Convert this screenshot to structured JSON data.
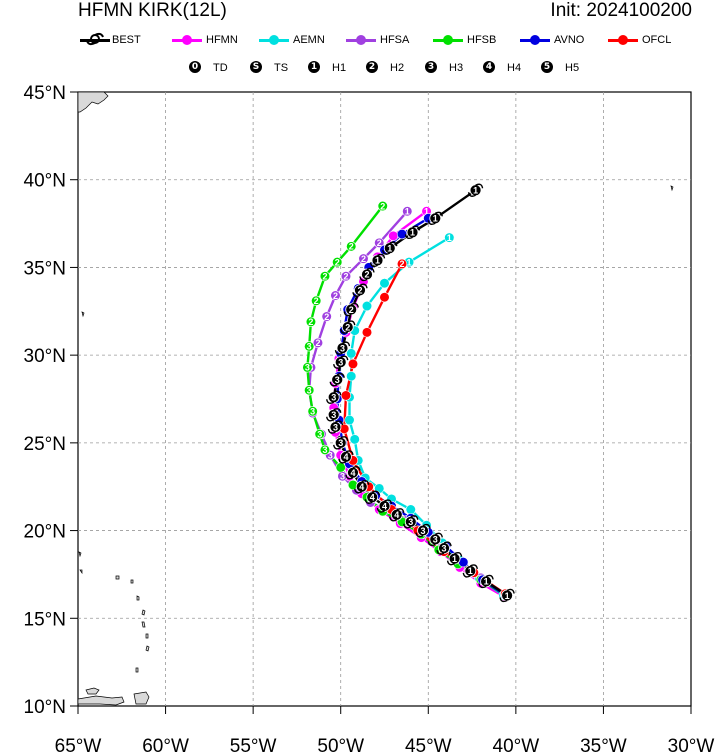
{
  "header": {
    "title": "HFMN KIRK(12L)",
    "init": "Init: 2024100200"
  },
  "legend": {
    "models": [
      {
        "label": "BEST",
        "color": "#000000",
        "icon": "hurricane-symbol-icon"
      },
      {
        "label": "HFMN",
        "color": "#ff00ff"
      },
      {
        "label": "AEMN",
        "color": "#00e0e0"
      },
      {
        "label": "HFSA",
        "color": "#a040e0"
      },
      {
        "label": "HFSB",
        "color": "#00e000"
      },
      {
        "label": "AVNO",
        "color": "#0000e0"
      },
      {
        "label": "OFCL",
        "color": "#ff0000"
      }
    ],
    "categories": [
      {
        "symbol": "0",
        "label": "TD"
      },
      {
        "symbol": "S",
        "label": "TS"
      },
      {
        "symbol": "1",
        "label": "H1"
      },
      {
        "symbol": "2",
        "label": "H2"
      },
      {
        "symbol": "3",
        "label": "H3"
      },
      {
        "symbol": "4",
        "label": "H4"
      },
      {
        "symbol": "5",
        "label": "H5"
      }
    ]
  },
  "map": {
    "lon_range": [
      -65,
      -30
    ],
    "lat_range": [
      10,
      45
    ],
    "lat_ticks": [
      "45°N",
      "40°N",
      "35°N",
      "30°N",
      "25°N",
      "20°N",
      "15°N",
      "10°N"
    ],
    "lon_ticks": [
      "65°W",
      "60°W",
      "55°W",
      "50°W",
      "45°W",
      "40°W",
      "35°W",
      "30°W"
    ],
    "grid": "dashed"
  },
  "chart_data": {
    "type": "scatter",
    "x_unit": "longitude (deg, negative = W)",
    "y_unit": "latitude (deg N)",
    "series": [
      {
        "name": "BEST",
        "color": "#000000",
        "points": [
          [
            -40.5,
            16.3,
            "1"
          ],
          [
            -41.7,
            17.1,
            "1"
          ],
          [
            -42.6,
            17.7,
            "1"
          ],
          [
            -43.5,
            18.4,
            "1"
          ],
          [
            -44.1,
            19.0,
            "3"
          ],
          [
            -44.6,
            19.5,
            "3"
          ],
          [
            -45.3,
            20.0,
            "3"
          ],
          [
            -46.0,
            20.5,
            "3"
          ],
          [
            -46.8,
            20.9,
            "4"
          ],
          [
            -47.5,
            21.4,
            "4"
          ],
          [
            -48.2,
            21.9,
            "4"
          ],
          [
            -48.8,
            22.5,
            "4"
          ],
          [
            -49.3,
            23.3,
            "4"
          ],
          [
            -49.7,
            24.2,
            "4"
          ],
          [
            -50.0,
            25.0,
            "3"
          ],
          [
            -50.3,
            25.9,
            "3"
          ],
          [
            -50.4,
            26.6,
            "3"
          ],
          [
            -50.4,
            27.6,
            "3"
          ],
          [
            -50.2,
            28.6,
            "3"
          ],
          [
            -50.0,
            29.6,
            "3"
          ],
          [
            -49.9,
            30.4,
            "3"
          ],
          [
            -49.6,
            31.6,
            "2"
          ],
          [
            -49.4,
            32.6,
            "2"
          ],
          [
            -48.9,
            33.7,
            "2"
          ],
          [
            -48.5,
            34.6,
            "2"
          ],
          [
            -47.9,
            35.4,
            "1"
          ],
          [
            -47.2,
            36.1,
            "1"
          ],
          [
            -45.9,
            37.0,
            "1"
          ],
          [
            -44.6,
            37.8,
            "1"
          ],
          [
            -42.3,
            39.4,
            "1"
          ]
        ]
      },
      {
        "name": "HFMN",
        "color": "#ff00ff",
        "points": [
          [
            -40.6,
            16.2,
            ""
          ],
          [
            -42.0,
            17.0,
            ""
          ],
          [
            -43.2,
            17.9,
            ""
          ],
          [
            -44.3,
            18.8,
            ""
          ],
          [
            -45.4,
            19.6,
            ""
          ],
          [
            -46.6,
            20.4,
            ""
          ],
          [
            -47.8,
            21.2,
            ""
          ],
          [
            -48.8,
            22.1,
            ""
          ],
          [
            -49.5,
            23.1,
            ""
          ],
          [
            -50.0,
            24.3,
            ""
          ],
          [
            -50.3,
            25.6,
            ""
          ],
          [
            -50.4,
            27.0,
            ""
          ],
          [
            -50.3,
            28.4,
            ""
          ],
          [
            -50.1,
            29.8,
            ""
          ],
          [
            -49.7,
            31.3,
            ""
          ],
          [
            -49.3,
            32.7,
            ""
          ],
          [
            -48.7,
            34.2,
            ""
          ],
          [
            -47.9,
            35.6,
            ""
          ],
          [
            -47.0,
            36.8,
            ""
          ],
          [
            -45.1,
            38.2,
            "1"
          ]
        ]
      },
      {
        "name": "AEMN",
        "color": "#00e0e0",
        "points": [
          [
            -40.7,
            16.3,
            ""
          ],
          [
            -42.1,
            17.3,
            ""
          ],
          [
            -43.2,
            18.3,
            ""
          ],
          [
            -44.2,
            19.3,
            ""
          ],
          [
            -45.1,
            20.3,
            ""
          ],
          [
            -46.0,
            21.2,
            ""
          ],
          [
            -47.1,
            21.8,
            ""
          ],
          [
            -47.8,
            22.4,
            ""
          ],
          [
            -48.6,
            23.0,
            ""
          ],
          [
            -49.0,
            24.0,
            ""
          ],
          [
            -49.2,
            25.2,
            ""
          ],
          [
            -49.5,
            26.3,
            ""
          ],
          [
            -49.5,
            27.6,
            ""
          ],
          [
            -49.4,
            28.8,
            ""
          ],
          [
            -49.4,
            30.1,
            ""
          ],
          [
            -49.2,
            31.4,
            ""
          ],
          [
            -48.5,
            32.8,
            ""
          ],
          [
            -47.5,
            34.1,
            ""
          ],
          [
            -46.1,
            35.3,
            "1"
          ],
          [
            -43.8,
            36.7,
            "1"
          ]
        ]
      },
      {
        "name": "HFSA",
        "color": "#a040e0",
        "points": [
          [
            -40.6,
            16.3,
            ""
          ],
          [
            -42.0,
            17.3,
            ""
          ],
          [
            -43.3,
            18.2,
            ""
          ],
          [
            -44.3,
            19.0,
            ""
          ],
          [
            -45.3,
            19.8,
            ""
          ],
          [
            -46.2,
            20.6,
            ""
          ],
          [
            -47.4,
            21.2,
            ""
          ],
          [
            -48.3,
            21.6,
            ""
          ],
          [
            -49.1,
            22.3,
            ""
          ],
          [
            -49.9,
            23.1,
            "3"
          ],
          [
            -50.6,
            24.3,
            "3"
          ],
          [
            -51.1,
            25.5,
            "3"
          ],
          [
            -51.6,
            26.7,
            "3"
          ],
          [
            -51.8,
            28.0,
            "3"
          ],
          [
            -51.7,
            29.3,
            "3"
          ],
          [
            -51.3,
            30.7,
            "2"
          ],
          [
            -50.8,
            32.2,
            "2"
          ],
          [
            -50.3,
            33.4,
            "2"
          ],
          [
            -49.7,
            34.5,
            "2"
          ],
          [
            -48.7,
            35.5,
            "2"
          ],
          [
            -47.8,
            36.4,
            "2"
          ],
          [
            -46.2,
            38.2,
            "1"
          ]
        ]
      },
      {
        "name": "HFSB",
        "color": "#00e000",
        "points": [
          [
            -40.6,
            16.3,
            ""
          ],
          [
            -42.0,
            17.2,
            ""
          ],
          [
            -43.3,
            18.1,
            ""
          ],
          [
            -44.4,
            18.9,
            ""
          ],
          [
            -45.4,
            19.8,
            ""
          ],
          [
            -46.5,
            20.5,
            ""
          ],
          [
            -47.6,
            21.1,
            ""
          ],
          [
            -48.5,
            21.9,
            ""
          ],
          [
            -49.3,
            22.6,
            ""
          ],
          [
            -50.0,
            23.6,
            ""
          ],
          [
            -50.9,
            24.6,
            "3"
          ],
          [
            -51.2,
            25.5,
            "3"
          ],
          [
            -51.6,
            26.8,
            "3"
          ],
          [
            -51.8,
            28.0,
            "3"
          ],
          [
            -51.9,
            29.3,
            "3"
          ],
          [
            -51.8,
            30.5,
            "3"
          ],
          [
            -51.7,
            31.9,
            "2"
          ],
          [
            -51.4,
            33.1,
            "2"
          ],
          [
            -50.9,
            34.5,
            "2"
          ],
          [
            -50.2,
            35.3,
            "2"
          ],
          [
            -49.4,
            36.2,
            "2"
          ],
          [
            -47.6,
            38.5,
            "2"
          ]
        ]
      },
      {
        "name": "AVNO",
        "color": "#0000e0",
        "points": [
          [
            -40.6,
            16.3,
            ""
          ],
          [
            -41.9,
            17.2,
            ""
          ],
          [
            -43.0,
            18.2,
            ""
          ],
          [
            -44.0,
            19.1,
            ""
          ],
          [
            -45.0,
            19.9,
            ""
          ],
          [
            -46.0,
            20.7,
            ""
          ],
          [
            -47.1,
            21.4,
            ""
          ],
          [
            -48.0,
            22.0,
            ""
          ],
          [
            -48.8,
            22.8,
            ""
          ],
          [
            -49.5,
            23.8,
            ""
          ],
          [
            -49.9,
            25.0,
            ""
          ],
          [
            -50.1,
            26.3,
            ""
          ],
          [
            -50.2,
            27.5,
            ""
          ],
          [
            -50.1,
            28.8,
            ""
          ],
          [
            -50.0,
            30.1,
            ""
          ],
          [
            -49.8,
            31.4,
            ""
          ],
          [
            -49.6,
            32.6,
            ""
          ],
          [
            -49.0,
            33.8,
            ""
          ],
          [
            -48.4,
            35.0,
            ""
          ],
          [
            -47.5,
            36.0,
            ""
          ],
          [
            -46.5,
            36.9,
            ""
          ],
          [
            -45.0,
            37.8,
            ""
          ]
        ]
      },
      {
        "name": "OFCL",
        "color": "#ff0000",
        "points": [
          [
            -40.6,
            16.4,
            ""
          ],
          [
            -42.4,
            17.6,
            ""
          ],
          [
            -44.1,
            18.8,
            ""
          ],
          [
            -45.6,
            20.0,
            ""
          ],
          [
            -47.1,
            21.2,
            ""
          ],
          [
            -48.4,
            22.5,
            ""
          ],
          [
            -49.3,
            24.0,
            ""
          ],
          [
            -49.8,
            25.8,
            ""
          ],
          [
            -49.7,
            27.7,
            ""
          ],
          [
            -49.3,
            29.5,
            ""
          ],
          [
            -48.5,
            31.3,
            ""
          ],
          [
            -47.5,
            33.3,
            ""
          ],
          [
            -46.5,
            35.2,
            "2"
          ]
        ]
      }
    ]
  }
}
